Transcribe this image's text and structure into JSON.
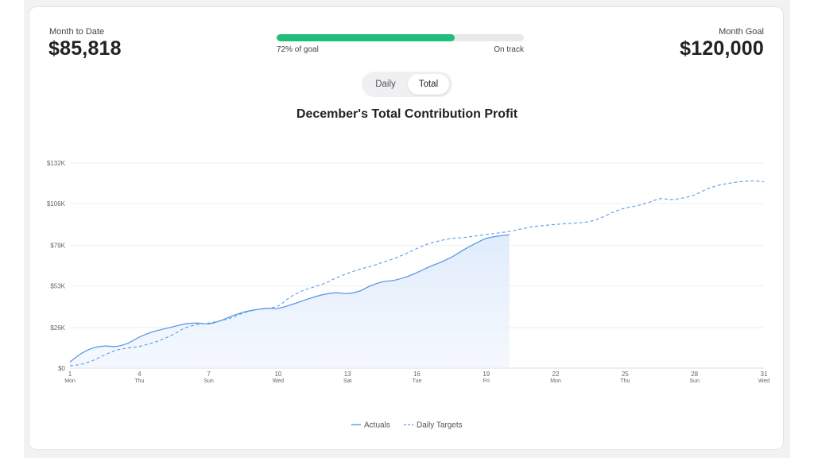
{
  "summary": {
    "month_to_date_label": "Month to Date",
    "month_to_date_value": "$85,818",
    "month_goal_label": "Month Goal",
    "month_goal_value": "$120,000",
    "progress_fraction": 0.72,
    "progress_label": "72% of goal",
    "progress_status": "On track"
  },
  "toggle": {
    "options": [
      "Daily",
      "Total"
    ],
    "selected": "Total"
  },
  "colors": {
    "accent_green": "#1fbf7a",
    "series_blue": "#5b9be8"
  },
  "chart_data": {
    "type": "line",
    "title": "December's Total Contribution Profit",
    "xlabel": "",
    "ylabel": "",
    "xlim": [
      1,
      31
    ],
    "ylim": [
      0,
      132000
    ],
    "y_ticks": [
      {
        "value": 0,
        "label": "$0"
      },
      {
        "value": 26000,
        "label": "$26K"
      },
      {
        "value": 53000,
        "label": "$53K"
      },
      {
        "value": 79000,
        "label": "$79K"
      },
      {
        "value": 106000,
        "label": "$106K"
      },
      {
        "value": 132000,
        "label": "$132K"
      }
    ],
    "x_ticks": [
      {
        "value": 1,
        "day": "1",
        "weekday": "Mon"
      },
      {
        "value": 4,
        "day": "4",
        "weekday": "Thu"
      },
      {
        "value": 7,
        "day": "7",
        "weekday": "Sun"
      },
      {
        "value": 10,
        "day": "10",
        "weekday": "Wed"
      },
      {
        "value": 13,
        "day": "13",
        "weekday": "Sat"
      },
      {
        "value": 16,
        "day": "16",
        "weekday": "Tue"
      },
      {
        "value": 19,
        "day": "19",
        "weekday": "Fri"
      },
      {
        "value": 22,
        "day": "22",
        "weekday": "Mon"
      },
      {
        "value": 25,
        "day": "25",
        "weekday": "Thu"
      },
      {
        "value": 28,
        "day": "28",
        "weekday": "Sun"
      },
      {
        "value": 31,
        "day": "31",
        "weekday": "Wed"
      }
    ],
    "grid": true,
    "legend_position": "bottom-center",
    "series": [
      {
        "name": "Actuals",
        "style": "solid",
        "filled": true,
        "points": [
          [
            1,
            4000
          ],
          [
            1.5,
            9500
          ],
          [
            2,
            13000
          ],
          [
            2.5,
            14200
          ],
          [
            3,
            14000
          ],
          [
            3.5,
            16000
          ],
          [
            4,
            20000
          ],
          [
            4.5,
            23000
          ],
          [
            5,
            25000
          ],
          [
            5.5,
            26800
          ],
          [
            6,
            28500
          ],
          [
            6.5,
            29000
          ],
          [
            7,
            28500
          ],
          [
            7.5,
            30500
          ],
          [
            8,
            33500
          ],
          [
            8.5,
            36000
          ],
          [
            9,
            37500
          ],
          [
            9.5,
            38500
          ],
          [
            10,
            38500
          ],
          [
            10.5,
            40500
          ],
          [
            11,
            43000
          ],
          [
            11.5,
            45500
          ],
          [
            12,
            47500
          ],
          [
            12.5,
            48500
          ],
          [
            13,
            48000
          ],
          [
            13.5,
            49500
          ],
          [
            14,
            53000
          ],
          [
            14.5,
            55500
          ],
          [
            15,
            56500
          ],
          [
            15.5,
            58500
          ],
          [
            16,
            61500
          ],
          [
            16.5,
            65000
          ],
          [
            17,
            68000
          ],
          [
            17.5,
            71500
          ],
          [
            18,
            76000
          ],
          [
            18.5,
            80000
          ],
          [
            19,
            83500
          ],
          [
            19.5,
            85000
          ],
          [
            20,
            85818
          ]
        ]
      },
      {
        "name": "Daily Targets",
        "style": "dashed",
        "filled": false,
        "points": [
          [
            1,
            1500
          ],
          [
            1.5,
            2500
          ],
          [
            2,
            5000
          ],
          [
            2.5,
            8500
          ],
          [
            3,
            11500
          ],
          [
            3.5,
            13000
          ],
          [
            4,
            14000
          ],
          [
            4.5,
            16000
          ],
          [
            5,
            18500
          ],
          [
            5.5,
            22000
          ],
          [
            6,
            26000
          ],
          [
            6.5,
            28000
          ],
          [
            7,
            29000
          ],
          [
            7.5,
            30500
          ],
          [
            8,
            32500
          ],
          [
            8.5,
            35500
          ],
          [
            9,
            37500
          ],
          [
            9.5,
            38500
          ],
          [
            10,
            40000
          ],
          [
            10.5,
            45500
          ],
          [
            11,
            49500
          ],
          [
            11.5,
            52000
          ],
          [
            12,
            54500
          ],
          [
            12.5,
            58000
          ],
          [
            13,
            61000
          ],
          [
            13.5,
            63500
          ],
          [
            14,
            65500
          ],
          [
            14.5,
            68000
          ],
          [
            15,
            70500
          ],
          [
            15.5,
            73500
          ],
          [
            16,
            77000
          ],
          [
            16.5,
            80000
          ],
          [
            17,
            82000
          ],
          [
            17.5,
            83500
          ],
          [
            18,
            84000
          ],
          [
            18.5,
            85000
          ],
          [
            19,
            86000
          ],
          [
            19.5,
            87000
          ],
          [
            20,
            88000
          ],
          [
            20.5,
            89500
          ],
          [
            21,
            91000
          ],
          [
            21.5,
            91800
          ],
          [
            22,
            92500
          ],
          [
            22.5,
            93000
          ],
          [
            23,
            93500
          ],
          [
            23.5,
            94500
          ],
          [
            24,
            97000
          ],
          [
            24.5,
            100500
          ],
          [
            25,
            103000
          ],
          [
            25.5,
            104500
          ],
          [
            26,
            106500
          ],
          [
            26.5,
            109000
          ],
          [
            27,
            108500
          ],
          [
            27.5,
            109500
          ],
          [
            28,
            111500
          ],
          [
            28.5,
            115000
          ],
          [
            29,
            117500
          ],
          [
            29.5,
            119000
          ],
          [
            30,
            120000
          ],
          [
            30.5,
            120500
          ],
          [
            31,
            120000
          ]
        ]
      }
    ]
  }
}
